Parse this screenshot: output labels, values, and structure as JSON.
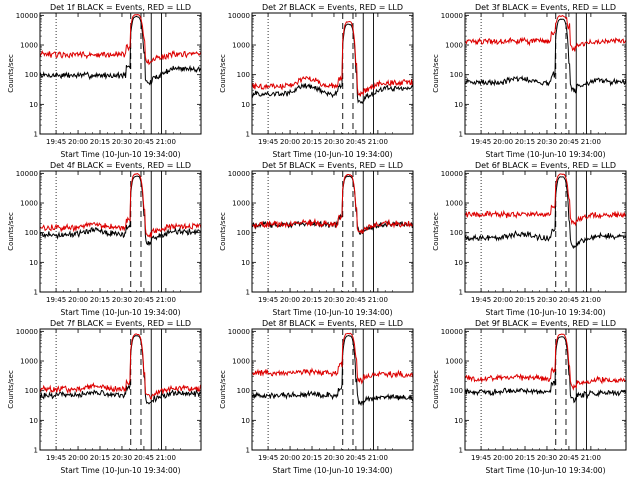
{
  "chart_data": [
    {
      "type": "line",
      "title": "Det 1f BLACK = Events, RED = LLD",
      "xlabel": "Start Time (10-Jun-10 19:34:00)",
      "ylabel": "Counts/sec",
      "log_y": true,
      "ylim": [
        1,
        12000
      ],
      "xlim_minutes": [
        0,
        110
      ],
      "xtick_labels": [
        "19:45",
        "20:00",
        "20:15",
        "20:30",
        "20:45",
        "21:00"
      ],
      "ytick_labels": [
        "1",
        "10",
        "100",
        "1000",
        "10000"
      ],
      "markers": {
        "dotted": 11,
        "dashed": [
          62,
          69
        ],
        "solid": [
          76,
          83
        ]
      },
      "series": [
        {
          "name": "Events",
          "color": "#000000",
          "baseline": 95,
          "bump": 1.0,
          "peak": 9000,
          "post": 160
        },
        {
          "name": "LLD",
          "color": "#dd0000",
          "baseline": 470,
          "bump": 1.0,
          "peak": 10500,
          "post": 480
        }
      ]
    },
    {
      "type": "line",
      "title": "Det 2f BLACK = Events, RED = LLD",
      "xlabel": "Start Time (10-Jun-10 19:34:00)",
      "ylabel": "Counts/sec",
      "log_y": true,
      "ylim": [
        1,
        12000
      ],
      "xlim_minutes": [
        0,
        110
      ],
      "xtick_labels": [
        "19:45",
        "20:00",
        "20:15",
        "20:30",
        "20:45",
        "21:00"
      ],
      "ytick_labels": [
        "1",
        "10",
        "100",
        "1000",
        "10000"
      ],
      "markers": {
        "dotted": 11,
        "dashed": [
          62,
          69
        ],
        "solid": [
          76,
          83
        ]
      },
      "series": [
        {
          "name": "Events",
          "color": "#000000",
          "baseline": 22,
          "bump": 1.9,
          "peak": 5000,
          "post": 35
        },
        {
          "name": "LLD",
          "color": "#dd0000",
          "baseline": 40,
          "bump": 1.8,
          "peak": 6000,
          "post": 55
        }
      ]
    },
    {
      "type": "line",
      "title": "Det 3f BLACK = Events, RED = LLD",
      "xlabel": "Start Time (10-Jun-10 19:34:00)",
      "ylabel": "Counts/sec",
      "log_y": true,
      "ylim": [
        1,
        12000
      ],
      "xlim_minutes": [
        0,
        110
      ],
      "xtick_labels": [
        "19:45",
        "20:00",
        "20:15",
        "20:30",
        "20:45",
        "21:00"
      ],
      "ytick_labels": [
        "1",
        "10",
        "100",
        "1000",
        "10000"
      ],
      "markers": {
        "dotted": 11,
        "dashed": [
          62,
          69
        ],
        "solid": [
          76,
          83
        ]
      },
      "series": [
        {
          "name": "Events",
          "color": "#000000",
          "baseline": 55,
          "bump": 1.3,
          "peak": 7500,
          "post": 60
        },
        {
          "name": "LLD",
          "color": "#dd0000",
          "baseline": 1350,
          "bump": 1.0,
          "peak": 9500,
          "post": 1300
        }
      ]
    },
    {
      "type": "line",
      "title": "Det 4f BLACK = Events, RED = LLD",
      "xlabel": "Start Time (10-Jun-10 19:34:00)",
      "ylabel": "Counts/sec",
      "log_y": true,
      "ylim": [
        1,
        12000
      ],
      "xlim_minutes": [
        0,
        110
      ],
      "xtick_labels": [
        "19:45",
        "20:00",
        "20:15",
        "20:30",
        "20:45",
        "21:00"
      ],
      "ytick_labels": [
        "1",
        "10",
        "100",
        "1000",
        "10000"
      ],
      "markers": {
        "dotted": 11,
        "dashed": [
          62,
          69
        ],
        "solid": [
          76,
          83
        ]
      },
      "series": [
        {
          "name": "Events",
          "color": "#000000",
          "baseline": 85,
          "bump": 1.4,
          "peak": 8000,
          "post": 110
        },
        {
          "name": "LLD",
          "color": "#dd0000",
          "baseline": 145,
          "bump": 1.35,
          "peak": 9500,
          "post": 160
        }
      ]
    },
    {
      "type": "line",
      "title": "Det 5f BLACK = Events, RED = LLD",
      "xlabel": "Start Time (10-Jun-10 19:34:00)",
      "ylabel": "Counts/sec",
      "log_y": true,
      "ylim": [
        1,
        12000
      ],
      "xlim_minutes": [
        0,
        110
      ],
      "xtick_labels": [
        "19:45",
        "20:00",
        "20:15",
        "20:30",
        "20:45",
        "21:00"
      ],
      "ytick_labels": [
        "1",
        "10",
        "100",
        "1000",
        "10000"
      ],
      "markers": {
        "dotted": 11,
        "dashed": [
          62,
          69
        ],
        "solid": [
          76,
          83
        ]
      },
      "series": [
        {
          "name": "Events",
          "color": "#000000",
          "baseline": 180,
          "bump": 1.15,
          "peak": 8000,
          "post": 190
        },
        {
          "name": "LLD",
          "color": "#dd0000",
          "baseline": 190,
          "bump": 1.15,
          "peak": 9000,
          "post": 200
        }
      ]
    },
    {
      "type": "line",
      "title": "Det 6f BLACK = Events, RED = LLD",
      "xlabel": "Start Time (10-Jun-10 19:34:00)",
      "ylabel": "Counts/sec",
      "log_y": true,
      "ylim": [
        1,
        12000
      ],
      "xlim_minutes": [
        0,
        110
      ],
      "xtick_labels": [
        "19:45",
        "20:00",
        "20:15",
        "20:30",
        "20:45",
        "21:00"
      ],
      "ytick_labels": [
        "1",
        "10",
        "100",
        "1000",
        "10000"
      ],
      "markers": {
        "dotted": 11,
        "dashed": [
          62,
          69
        ],
        "solid": [
          76,
          83
        ]
      },
      "series": [
        {
          "name": "Events",
          "color": "#000000",
          "baseline": 65,
          "bump": 1.4,
          "peak": 7500,
          "post": 75
        },
        {
          "name": "LLD",
          "color": "#dd0000",
          "baseline": 410,
          "bump": 1.0,
          "peak": 9500,
          "post": 400
        }
      ]
    },
    {
      "type": "line",
      "title": "Det 7f BLACK = Events, RED = LLD",
      "xlabel": "Start Time (10-Jun-10 19:34:00)",
      "ylabel": "Counts/sec",
      "log_y": true,
      "ylim": [
        1,
        12000
      ],
      "xlim_minutes": [
        0,
        110
      ],
      "xtick_labels": [
        "19:45",
        "20:00",
        "20:15",
        "20:30",
        "20:45",
        "21:00"
      ],
      "ytick_labels": [
        "1",
        "10",
        "100",
        "1000",
        "10000"
      ],
      "markers": {
        "dotted": 11,
        "dashed": [
          62,
          69
        ],
        "solid": [
          76,
          83
        ]
      },
      "series": [
        {
          "name": "Events",
          "color": "#000000",
          "baseline": 70,
          "bump": 1.3,
          "peak": 7000,
          "post": 80
        },
        {
          "name": "LLD",
          "color": "#dd0000",
          "baseline": 110,
          "bump": 1.3,
          "peak": 8000,
          "post": 120
        }
      ]
    },
    {
      "type": "line",
      "title": "Det 8f BLACK = Events, RED = LLD",
      "xlabel": "Start Time (10-Jun-10 19:34:00)",
      "ylabel": "Counts/sec",
      "log_y": true,
      "ylim": [
        1,
        12000
      ],
      "xlim_minutes": [
        0,
        110
      ],
      "xtick_labels": [
        "19:45",
        "20:00",
        "20:15",
        "20:30",
        "20:45",
        "21:00"
      ],
      "ytick_labels": [
        "1",
        "10",
        "100",
        "1000",
        "10000"
      ],
      "markers": {
        "dotted": 11,
        "dashed": [
          62,
          69
        ],
        "solid": [
          76,
          83
        ]
      },
      "series": [
        {
          "name": "Events",
          "color": "#000000",
          "baseline": 70,
          "bump": 1.1,
          "peak": 7000,
          "post": 60
        },
        {
          "name": "LLD",
          "color": "#dd0000",
          "baseline": 400,
          "bump": 1.1,
          "peak": 8500,
          "post": 360
        }
      ]
    },
    {
      "type": "line",
      "title": "Det 9f BLACK = Events, RED = LLD",
      "xlabel": "Start Time (10-Jun-10 19:34:00)",
      "ylabel": "Counts/sec",
      "log_y": true,
      "ylim": [
        1,
        12000
      ],
      "xlim_minutes": [
        0,
        110
      ],
      "xtick_labels": [
        "19:45",
        "20:00",
        "20:15",
        "20:30",
        "20:45",
        "21:00"
      ],
      "ytick_labels": [
        "1",
        "10",
        "100",
        "1000",
        "10000"
      ],
      "markers": {
        "dotted": 11,
        "dashed": [
          62,
          69
        ],
        "solid": [
          76,
          83
        ]
      },
      "series": [
        {
          "name": "Events",
          "color": "#000000",
          "baseline": 90,
          "bump": 1.15,
          "peak": 6500,
          "post": 85
        },
        {
          "name": "LLD",
          "color": "#dd0000",
          "baseline": 260,
          "bump": 1.1,
          "peak": 8000,
          "post": 230
        }
      ]
    }
  ]
}
